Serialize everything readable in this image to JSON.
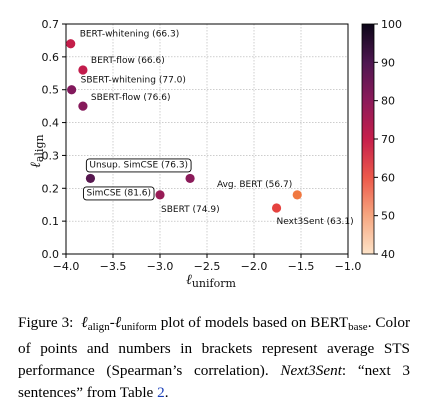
{
  "chart_data": {
    "type": "scatter",
    "xlabel_main": "ℓ",
    "xlabel_sub": "uniform",
    "ylabel_main": "ℓ",
    "ylabel_sub": "align",
    "xlim": [
      -4.0,
      -1.0
    ],
    "ylim": [
      0.0,
      0.7
    ],
    "xticks": [
      -4.0,
      -3.5,
      -3.0,
      -2.5,
      -2.0,
      -1.5,
      -1.0
    ],
    "xtick_labels": [
      "−4.0",
      "−3.5",
      "−3.0",
      "−2.5",
      "−2.0",
      "−1.5",
      "−1.0"
    ],
    "yticks": [
      0.0,
      0.1,
      0.2,
      0.3,
      0.4,
      0.5,
      0.6,
      0.7
    ],
    "ytick_labels": [
      "0.0",
      "0.1",
      "0.2",
      "0.3",
      "0.4",
      "0.5",
      "0.6",
      "0.7"
    ],
    "grid": true,
    "colorbar": {
      "min": 40,
      "max": 100,
      "ticks": [
        40,
        50,
        60,
        70,
        80,
        90,
        100
      ],
      "tick_labels": [
        "40",
        "50",
        "60",
        "70",
        "80",
        "90",
        "100"
      ]
    },
    "points": [
      {
        "label": "BERT-whitening (66.3)",
        "x": -3.95,
        "y": 0.64,
        "score": 66.3,
        "color": "#c41e4a",
        "boxed": false
      },
      {
        "label": "BERT-flow (66.6)",
        "x": -3.82,
        "y": 0.56,
        "score": 66.6,
        "color": "#c21c4c",
        "boxed": false
      },
      {
        "label": "SBERT-whitening (77.0)",
        "x": -3.94,
        "y": 0.5,
        "score": 77.0,
        "color": "#82195c",
        "boxed": false
      },
      {
        "label": "SBERT-flow (76.6)",
        "x": -3.82,
        "y": 0.45,
        "score": 76.6,
        "color": "#861a5b",
        "boxed": false
      },
      {
        "label": "Unsup. SimCSE (76.3)",
        "x": -2.68,
        "y": 0.23,
        "score": 76.3,
        "color": "#8b1b5a",
        "boxed": true
      },
      {
        "label": "SimCSE (81.6)",
        "x": -3.74,
        "y": 0.23,
        "score": 81.6,
        "color": "#57174f",
        "boxed": true
      },
      {
        "label": "SBERT (74.9)",
        "x": -3.0,
        "y": 0.18,
        "score": 74.9,
        "color": "#981b56",
        "boxed": false
      },
      {
        "label": "Avg. BERT (56.7)",
        "x": -1.54,
        "y": 0.18,
        "score": 56.7,
        "color": "#f07840",
        "boxed": false
      },
      {
        "label": "Next3Sent (63.1)",
        "x": -1.76,
        "y": 0.14,
        "score": 63.1,
        "color": "#e5423f",
        "boxed": false
      }
    ]
  },
  "caption": {
    "fig_label": "Figure 3:",
    "l1": "ℓ",
    "l1_sub": "align",
    "dash": "-",
    "l2": "ℓ",
    "l2_sub": "uniform",
    "t1": "plot of models based on",
    "bert": "BERT",
    "bert_sub": "base",
    "t2": ". Color of points and numbers in brackets represent average STS performance (Spearman’s correlation).",
    "next_term": "Next3Sent",
    "t3": ": “next 3 sentences” from Table",
    "table_ref": "2",
    "t4": "."
  }
}
